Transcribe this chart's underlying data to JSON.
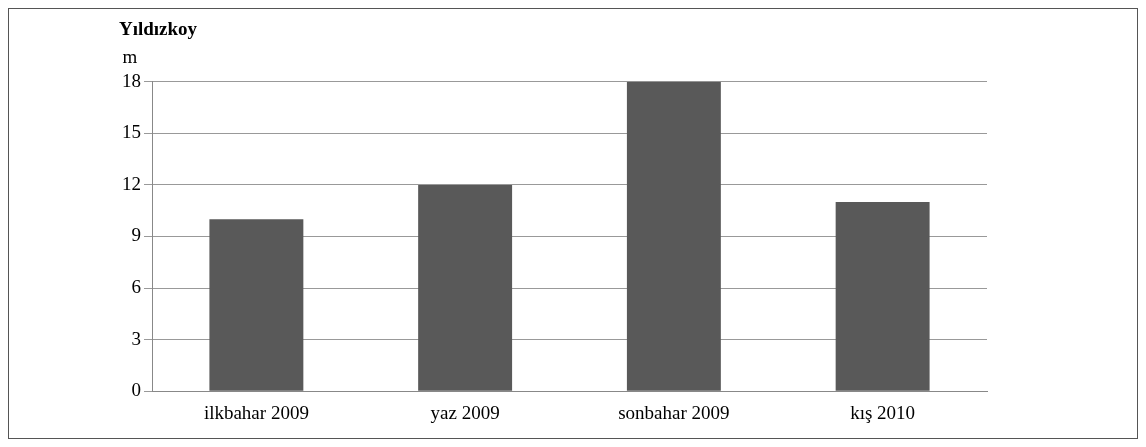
{
  "chart_data": {
    "type": "bar",
    "title": "Yıldızkoy",
    "ylabel": "m",
    "categories": [
      "ilkbahar 2009",
      "yaz 2009",
      "sonbahar 2009",
      "kış 2010"
    ],
    "values": [
      10,
      12,
      18,
      11
    ],
    "color": "#595959",
    "ylim": [
      0,
      18
    ],
    "yticks": [
      0,
      3,
      6,
      9,
      12,
      15,
      18
    ],
    "grid": "y",
    "legend": false
  }
}
